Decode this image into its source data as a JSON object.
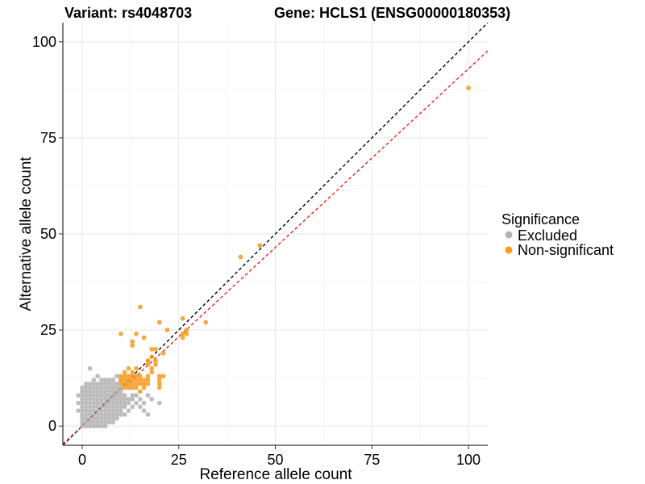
{
  "chart_data": {
    "type": "scatter",
    "title_variant": "Variant: rs4048703",
    "title_gene": "Gene: HCLS1 (ENSG00000180353)",
    "xlabel": "Reference allele count",
    "ylabel": "Alternative allele count",
    "xlim": [
      -5,
      105
    ],
    "ylim": [
      -5,
      105
    ],
    "xticks": [
      0,
      25,
      50,
      75,
      100
    ],
    "yticks": [
      0,
      25,
      50,
      75,
      100
    ],
    "grid": true,
    "reference_lines": [
      {
        "name": "identity",
        "slope": 1.0,
        "intercept": 0,
        "color": "#000000",
        "style": "dashed"
      },
      {
        "name": "fit",
        "slope": 0.93,
        "intercept": 0,
        "color": "#e8291c",
        "style": "dashed"
      }
    ],
    "legend": {
      "title": "Significance",
      "position": "right",
      "entries": [
        {
          "label": "Excluded",
          "color": "#b3b3b3"
        },
        {
          "label": "Non-significant",
          "color": "#f59a1e"
        }
      ]
    },
    "series": [
      {
        "name": "Excluded",
        "color": "#b3b3b3",
        "points": [
          [
            0,
            0
          ],
          [
            0,
            1
          ],
          [
            0,
            2
          ],
          [
            0,
            3
          ],
          [
            0,
            4
          ],
          [
            0,
            5
          ],
          [
            0,
            6
          ],
          [
            0,
            7
          ],
          [
            0,
            8
          ],
          [
            0,
            9
          ],
          [
            1,
            0
          ],
          [
            1,
            1
          ],
          [
            1,
            2
          ],
          [
            1,
            3
          ],
          [
            1,
            4
          ],
          [
            1,
            5
          ],
          [
            1,
            6
          ],
          [
            1,
            7
          ],
          [
            1,
            8
          ],
          [
            1,
            9
          ],
          [
            1,
            10
          ],
          [
            2,
            0
          ],
          [
            2,
            1
          ],
          [
            2,
            2
          ],
          [
            2,
            3
          ],
          [
            2,
            4
          ],
          [
            2,
            5
          ],
          [
            2,
            6
          ],
          [
            2,
            7
          ],
          [
            2,
            8
          ],
          [
            2,
            9
          ],
          [
            2,
            10
          ],
          [
            2,
            11
          ],
          [
            2,
            15
          ],
          [
            3,
            0
          ],
          [
            3,
            1
          ],
          [
            3,
            2
          ],
          [
            3,
            3
          ],
          [
            3,
            4
          ],
          [
            3,
            5
          ],
          [
            3,
            6
          ],
          [
            3,
            7
          ],
          [
            3,
            8
          ],
          [
            3,
            9
          ],
          [
            3,
            10
          ],
          [
            3,
            11
          ],
          [
            3,
            12
          ],
          [
            4,
            0
          ],
          [
            4,
            1
          ],
          [
            4,
            2
          ],
          [
            4,
            3
          ],
          [
            4,
            4
          ],
          [
            4,
            5
          ],
          [
            4,
            6
          ],
          [
            4,
            7
          ],
          [
            4,
            8
          ],
          [
            4,
            9
          ],
          [
            4,
            10
          ],
          [
            4,
            11
          ],
          [
            5,
            0
          ],
          [
            5,
            1
          ],
          [
            5,
            2
          ],
          [
            5,
            3
          ],
          [
            5,
            4
          ],
          [
            5,
            5
          ],
          [
            5,
            6
          ],
          [
            5,
            7
          ],
          [
            5,
            8
          ],
          [
            5,
            9
          ],
          [
            5,
            10
          ],
          [
            5,
            11
          ],
          [
            5,
            12
          ],
          [
            6,
            0
          ],
          [
            6,
            1
          ],
          [
            6,
            2
          ],
          [
            6,
            3
          ],
          [
            6,
            4
          ],
          [
            6,
            5
          ],
          [
            6,
            6
          ],
          [
            6,
            7
          ],
          [
            6,
            8
          ],
          [
            6,
            9
          ],
          [
            6,
            10
          ],
          [
            6,
            11
          ],
          [
            7,
            1
          ],
          [
            7,
            2
          ],
          [
            7,
            3
          ],
          [
            7,
            4
          ],
          [
            7,
            5
          ],
          [
            7,
            6
          ],
          [
            7,
            7
          ],
          [
            7,
            8
          ],
          [
            7,
            9
          ],
          [
            7,
            10
          ],
          [
            7,
            11
          ],
          [
            7,
            12
          ],
          [
            8,
            1
          ],
          [
            8,
            2
          ],
          [
            8,
            3
          ],
          [
            8,
            4
          ],
          [
            8,
            5
          ],
          [
            8,
            6
          ],
          [
            8,
            7
          ],
          [
            8,
            8
          ],
          [
            8,
            9
          ],
          [
            8,
            10
          ],
          [
            8,
            11
          ],
          [
            9,
            2
          ],
          [
            9,
            3
          ],
          [
            9,
            4
          ],
          [
            9,
            5
          ],
          [
            9,
            6
          ],
          [
            9,
            7
          ],
          [
            9,
            8
          ],
          [
            9,
            9
          ],
          [
            9,
            10
          ],
          [
            9,
            11
          ],
          [
            10,
            3
          ],
          [
            10,
            4
          ],
          [
            10,
            5
          ],
          [
            10,
            6
          ],
          [
            10,
            7
          ],
          [
            10,
            8
          ],
          [
            10,
            9
          ],
          [
            10,
            10
          ],
          [
            11,
            3
          ],
          [
            11,
            5
          ],
          [
            11,
            6
          ],
          [
            11,
            7
          ],
          [
            11,
            8
          ],
          [
            12,
            4
          ],
          [
            12,
            6
          ],
          [
            12,
            7
          ],
          [
            13,
            5
          ],
          [
            13,
            7
          ],
          [
            13,
            8
          ],
          [
            14,
            6
          ],
          [
            14,
            8
          ],
          [
            15,
            5
          ],
          [
            15,
            7
          ],
          [
            16,
            4
          ],
          [
            16,
            6
          ],
          [
            17,
            3
          ],
          [
            17,
            8
          ],
          [
            18,
            7
          ],
          [
            20,
            6
          ],
          [
            -1,
            4
          ],
          [
            -1,
            6
          ],
          [
            -1,
            8
          ],
          [
            0,
            10
          ],
          [
            1,
            11
          ],
          [
            4,
            13
          ],
          [
            6,
            12
          ],
          [
            8,
            12
          ],
          [
            9,
            13
          ],
          [
            10,
            12
          ]
        ]
      },
      {
        "name": "Non-significant",
        "color": "#f59a1e",
        "points": [
          [
            10,
            11
          ],
          [
            10,
            12
          ],
          [
            10,
            13
          ],
          [
            10,
            24
          ],
          [
            11,
            10
          ],
          [
            11,
            11
          ],
          [
            11,
            12
          ],
          [
            11,
            13
          ],
          [
            11,
            14
          ],
          [
            12,
            10
          ],
          [
            12,
            11
          ],
          [
            12,
            12
          ],
          [
            12,
            13
          ],
          [
            12,
            15
          ],
          [
            13,
            10
          ],
          [
            13,
            11
          ],
          [
            13,
            12
          ],
          [
            13,
            13
          ],
          [
            13,
            14
          ],
          [
            13,
            21
          ],
          [
            13,
            22
          ],
          [
            14,
            10
          ],
          [
            14,
            11
          ],
          [
            14,
            12
          ],
          [
            14,
            13
          ],
          [
            14,
            15
          ],
          [
            15,
            9
          ],
          [
            15,
            11
          ],
          [
            15,
            12
          ],
          [
            15,
            13
          ],
          [
            15,
            31
          ],
          [
            16,
            10
          ],
          [
            16,
            11
          ],
          [
            16,
            12
          ],
          [
            16,
            23
          ],
          [
            17,
            11
          ],
          [
            17,
            12
          ],
          [
            17,
            13
          ],
          [
            17,
            16
          ],
          [
            17,
            17
          ],
          [
            18,
            14
          ],
          [
            18,
            15
          ],
          [
            18,
            18
          ],
          [
            18,
            20
          ],
          [
            19,
            16
          ],
          [
            19,
            17
          ],
          [
            19,
            20
          ],
          [
            20,
            10
          ],
          [
            20,
            11
          ],
          [
            20,
            12
          ],
          [
            20,
            13
          ],
          [
            20,
            27
          ],
          [
            21,
            13
          ],
          [
            21,
            19
          ],
          [
            22,
            25
          ],
          [
            26,
            23
          ],
          [
            26,
            24
          ],
          [
            26,
            28
          ],
          [
            27,
            24
          ],
          [
            27,
            25
          ],
          [
            32,
            27
          ],
          [
            41,
            44
          ],
          [
            46,
            47
          ],
          [
            100,
            88
          ],
          [
            14,
            24
          ]
        ]
      }
    ]
  }
}
